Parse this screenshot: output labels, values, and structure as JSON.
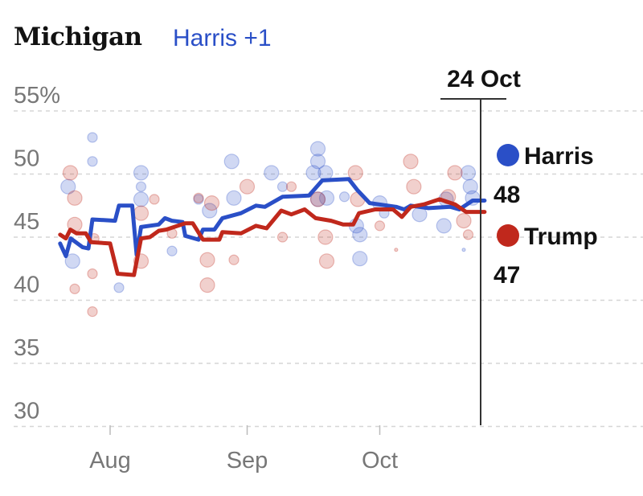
{
  "header": {
    "state": "Michigan",
    "lead": "Harris +1"
  },
  "chart_data": {
    "type": "line",
    "title": "Michigan",
    "subtitle": "Harris +1",
    "ylim": [
      30,
      55
    ],
    "yticks": [
      30,
      35,
      40,
      45,
      50,
      55
    ],
    "ytick_labels": [
      "30",
      "35",
      "40",
      "45",
      "50",
      "55%"
    ],
    "x_unit": "days since 1 Aug",
    "xlim": [
      -11.5,
      84.7
    ],
    "xticks": [
      {
        "day": 0,
        "label": "Aug"
      },
      {
        "day": 31,
        "label": "Sep"
      },
      {
        "day": 61,
        "label": "Oct"
      }
    ],
    "marker": {
      "day": 84,
      "label": "24 Oct"
    },
    "grid": true,
    "colors": {
      "Harris": "#2a4fc7",
      "Trump": "#c0281c"
    },
    "series": [
      {
        "name": "Harris",
        "final": "48",
        "points": [
          [
            -11.3,
            44.5
          ],
          [
            -10,
            43.5
          ],
          [
            -8.9,
            44.9
          ],
          [
            -6.2,
            44.2
          ],
          [
            -4.9,
            44.1
          ],
          [
            -4,
            46.4
          ],
          [
            1.1,
            46.3
          ],
          [
            2,
            47.5
          ],
          [
            5,
            47.5
          ],
          [
            6,
            43.6
          ],
          [
            7,
            45.8
          ],
          [
            11,
            46
          ],
          [
            12.4,
            46.5
          ],
          [
            14,
            46.3
          ],
          [
            16.4,
            46.2
          ],
          [
            17,
            45.1
          ],
          [
            20,
            44.8
          ],
          [
            21,
            45.6
          ],
          [
            23.6,
            45.6
          ],
          [
            25.4,
            46.5
          ],
          [
            29.6,
            46.9
          ],
          [
            33,
            47.5
          ],
          [
            35,
            47.4
          ],
          [
            39,
            48.2
          ],
          [
            45,
            48.3
          ],
          [
            48,
            49.5
          ],
          [
            54,
            49.6
          ],
          [
            56,
            48.7
          ],
          [
            58.7,
            47.7
          ],
          [
            64.7,
            47.4
          ],
          [
            66.5,
            47.2
          ],
          [
            68,
            47.5
          ],
          [
            72,
            47.3
          ],
          [
            77,
            47.4
          ],
          [
            79,
            47.2
          ],
          [
            82,
            47.9
          ],
          [
            84.7,
            47.9
          ]
        ]
      },
      {
        "name": "Trump",
        "final": "47",
        "points": [
          [
            -11.3,
            45.2
          ],
          [
            -10,
            44.9
          ],
          [
            -9,
            45.6
          ],
          [
            -7.6,
            45.3
          ],
          [
            -5.5,
            45.3
          ],
          [
            -4.3,
            44.6
          ],
          [
            0,
            44.5
          ],
          [
            1.7,
            42.1
          ],
          [
            5.4,
            42
          ],
          [
            7,
            44.9
          ],
          [
            9,
            45
          ],
          [
            11,
            45.5
          ],
          [
            12.7,
            45.6
          ],
          [
            17,
            46.1
          ],
          [
            18.7,
            46.1
          ],
          [
            21,
            44.8
          ],
          [
            24.7,
            44.8
          ],
          [
            25.4,
            45.4
          ],
          [
            29.6,
            45.3
          ],
          [
            33,
            45.9
          ],
          [
            35.4,
            45.7
          ],
          [
            38.7,
            47.1
          ],
          [
            41,
            46.8
          ],
          [
            44,
            47.2
          ],
          [
            46.5,
            46.5
          ],
          [
            50,
            46.3
          ],
          [
            52.7,
            46
          ],
          [
            55,
            46
          ],
          [
            56.3,
            46.9
          ],
          [
            60,
            47.2
          ],
          [
            64,
            47.2
          ],
          [
            66,
            46.6
          ],
          [
            68,
            47.4
          ],
          [
            71,
            47.6
          ],
          [
            74.5,
            48
          ],
          [
            78,
            47.6
          ],
          [
            80.5,
            47
          ],
          [
            84.7,
            47
          ]
        ]
      }
    ],
    "polls": [
      {
        "c": "Harris",
        "d": -9.5,
        "v": 49,
        "s": 2
      },
      {
        "c": "Harris",
        "d": -8.5,
        "v": 43.1,
        "s": 2
      },
      {
        "c": "Harris",
        "d": -4,
        "v": 52.9,
        "s": 1
      },
      {
        "c": "Harris",
        "d": -4,
        "v": 51,
        "s": 1
      },
      {
        "c": "Harris",
        "d": 7,
        "v": 50.1,
        "s": 2
      },
      {
        "c": "Harris",
        "d": 7,
        "v": 49,
        "s": 1
      },
      {
        "c": "Harris",
        "d": 7,
        "v": 48,
        "s": 2
      },
      {
        "c": "Harris",
        "d": 14,
        "v": 43.9,
        "s": 1
      },
      {
        "c": "Harris",
        "d": 2,
        "v": 41,
        "s": 1
      },
      {
        "c": "Harris",
        "d": 20,
        "v": 48,
        "s": 1
      },
      {
        "c": "Harris",
        "d": 22.5,
        "v": 47.1,
        "s": 2
      },
      {
        "c": "Harris",
        "d": 27.5,
        "v": 51,
        "s": 2
      },
      {
        "c": "Harris",
        "d": 28,
        "v": 48.1,
        "s": 2
      },
      {
        "c": "Harris",
        "d": 36.5,
        "v": 50.1,
        "s": 2
      },
      {
        "c": "Harris",
        "d": 39,
        "v": 49,
        "s": 1
      },
      {
        "c": "Harris",
        "d": 47,
        "v": 52,
        "s": 2
      },
      {
        "c": "Harris",
        "d": 47,
        "v": 51,
        "s": 2
      },
      {
        "c": "Harris",
        "d": 46,
        "v": 50.1,
        "s": 2
      },
      {
        "c": "Harris",
        "d": 48.7,
        "v": 50.1,
        "s": 2
      },
      {
        "c": "Harris",
        "d": 47,
        "v": 48,
        "s": 2
      },
      {
        "c": "Harris",
        "d": 49,
        "v": 48.1,
        "s": 2
      },
      {
        "c": "Harris",
        "d": 53,
        "v": 48.2,
        "s": 1
      },
      {
        "c": "Harris",
        "d": 56.5,
        "v": 43.3,
        "s": 2
      },
      {
        "c": "Harris",
        "d": 56.5,
        "v": 45.2,
        "s": 2
      },
      {
        "c": "Harris",
        "d": 55.7,
        "v": 45.9,
        "s": 2
      },
      {
        "c": "Harris",
        "d": 61,
        "v": 47.7,
        "s": 2
      },
      {
        "c": "Harris",
        "d": 62,
        "v": 46.9,
        "s": 1
      },
      {
        "c": "Harris",
        "d": 70,
        "v": 46.8,
        "s": 2
      },
      {
        "c": "Harris",
        "d": 75.5,
        "v": 45.9,
        "s": 2
      },
      {
        "c": "Harris",
        "d": 76,
        "v": 48,
        "s": 2
      },
      {
        "c": "Harris",
        "d": 81,
        "v": 50.1,
        "s": 2
      },
      {
        "c": "Harris",
        "d": 81.5,
        "v": 49,
        "s": 2
      },
      {
        "c": "Harris",
        "d": 82,
        "v": 48.1,
        "s": 2
      },
      {
        "c": "Harris",
        "d": 80,
        "v": 44,
        "s": 0
      },
      {
        "c": "Trump",
        "d": -9,
        "v": 50.1,
        "s": 2
      },
      {
        "c": "Trump",
        "d": -8,
        "v": 48.1,
        "s": 2
      },
      {
        "c": "Trump",
        "d": -8,
        "v": 46,
        "s": 2
      },
      {
        "c": "Trump",
        "d": -3.6,
        "v": 44.9,
        "s": 1
      },
      {
        "c": "Trump",
        "d": -4,
        "v": 42.1,
        "s": 1
      },
      {
        "c": "Trump",
        "d": -4,
        "v": 39.1,
        "s": 1
      },
      {
        "c": "Trump",
        "d": -8,
        "v": 40.9,
        "s": 1
      },
      {
        "c": "Trump",
        "d": 7,
        "v": 46.9,
        "s": 2
      },
      {
        "c": "Trump",
        "d": 7,
        "v": 43.1,
        "s": 2
      },
      {
        "c": "Trump",
        "d": 10,
        "v": 48,
        "s": 1
      },
      {
        "c": "Trump",
        "d": 14,
        "v": 45.3,
        "s": 1
      },
      {
        "c": "Trump",
        "d": 22,
        "v": 41.2,
        "s": 2
      },
      {
        "c": "Trump",
        "d": 22,
        "v": 43.2,
        "s": 2
      },
      {
        "c": "Trump",
        "d": 20,
        "v": 48.1,
        "s": 1
      },
      {
        "c": "Trump",
        "d": 23,
        "v": 47.7,
        "s": 2
      },
      {
        "c": "Trump",
        "d": 28,
        "v": 43.2,
        "s": 1
      },
      {
        "c": "Trump",
        "d": 31,
        "v": 49,
        "s": 2
      },
      {
        "c": "Trump",
        "d": 39,
        "v": 45,
        "s": 1
      },
      {
        "c": "Trump",
        "d": 41,
        "v": 49,
        "s": 1
      },
      {
        "c": "Trump",
        "d": 47,
        "v": 48,
        "s": 2
      },
      {
        "c": "Trump",
        "d": 49,
        "v": 43.1,
        "s": 2
      },
      {
        "c": "Trump",
        "d": 48.7,
        "v": 45,
        "s": 2
      },
      {
        "c": "Trump",
        "d": 55.5,
        "v": 50.1,
        "s": 2
      },
      {
        "c": "Trump",
        "d": 56,
        "v": 48,
        "s": 2
      },
      {
        "c": "Trump",
        "d": 61,
        "v": 45.9,
        "s": 1
      },
      {
        "c": "Trump",
        "d": 64.7,
        "v": 44,
        "s": 0
      },
      {
        "c": "Trump",
        "d": 68,
        "v": 51,
        "s": 2
      },
      {
        "c": "Trump",
        "d": 68.7,
        "v": 49,
        "s": 2
      },
      {
        "c": "Trump",
        "d": 78,
        "v": 50.1,
        "s": 2
      },
      {
        "c": "Trump",
        "d": 76.5,
        "v": 48.2,
        "s": 2
      },
      {
        "c": "Trump",
        "d": 81,
        "v": 45.2,
        "s": 1
      },
      {
        "c": "Trump",
        "d": 80,
        "v": 46.3,
        "s": 2
      }
    ]
  }
}
